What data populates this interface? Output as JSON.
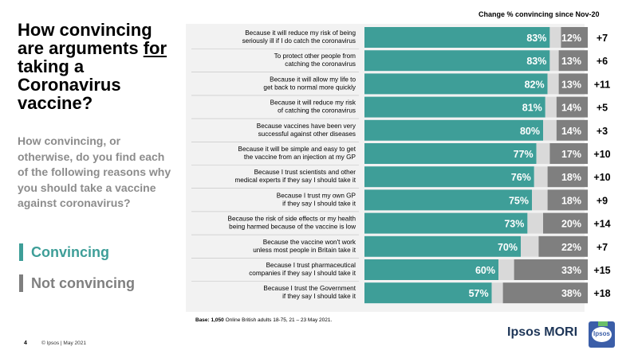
{
  "title": {
    "part1": "How convincing are arguments ",
    "underlined": "for ",
    "part2": "taking a Coronavirus vaccine?"
  },
  "subtitle": "How convincing, or otherwise, do you find each of the following reasons why you should take a vaccine against coronavirus?",
  "legend": {
    "convincing": "Convincing",
    "not_convincing": "Not convincing"
  },
  "change_header": "Change % convincing since Nov-20",
  "base_note": {
    "label": "Base: 1,050",
    "rest": " Online British adults 18-75,  21 – 23 May 2021."
  },
  "footer": {
    "page_number": "4",
    "copyright": "© Ipsos | May 2021",
    "brand": "Ipsos MORI",
    "logo_text": "Ipsos"
  },
  "colors": {
    "convincing": "#3e9e98",
    "not_convincing": "#7f7f7f",
    "neutral": "#d9d9d9"
  },
  "chart_data": {
    "type": "bar",
    "orientation": "horizontal-stacked",
    "title": "How convincing are arguments for taking a Coronavirus vaccine?",
    "xlim": [
      0,
      100
    ],
    "categories": [
      [
        "Because it will reduce my risk of being",
        "seriously ill if I do catch the coronavirus"
      ],
      [
        "To protect other people from",
        "catching the coronavirus"
      ],
      [
        "Because it will allow my life to",
        "get back to normal more quickly"
      ],
      [
        "Because it will reduce my risk",
        "of catching the coronavirus"
      ],
      [
        "Because vaccines have been very",
        "successful against other diseases"
      ],
      [
        "Because it will be simple and easy to get",
        "the vaccine from an injection at my GP"
      ],
      [
        "Because I trust scientists and other",
        "medical experts if they say I should take it"
      ],
      [
        "Because I trust my own GP",
        "if they say I should take it"
      ],
      [
        "Because the risk of side effects or my health",
        "being harmed because of the vaccine is low"
      ],
      [
        "Because the vaccine won't work",
        "unless most people in Britain take it"
      ],
      [
        "Because I trust pharmaceutical",
        "companies if they say I should take it"
      ],
      [
        "Because I trust the Government",
        "if they say I should take it"
      ]
    ],
    "series": [
      {
        "name": "Convincing",
        "values": [
          83,
          83,
          82,
          81,
          80,
          77,
          76,
          75,
          73,
          70,
          60,
          57
        ]
      },
      {
        "name": "Not convincing",
        "values": [
          12,
          13,
          13,
          14,
          14,
          17,
          18,
          18,
          20,
          22,
          33,
          38
        ]
      }
    ],
    "change_since_nov20": [
      "+7",
      "+6",
      "+11",
      "+5",
      "+3",
      "+10",
      "+10",
      "+9",
      "+14",
      "+7",
      "+15",
      "+18"
    ]
  }
}
